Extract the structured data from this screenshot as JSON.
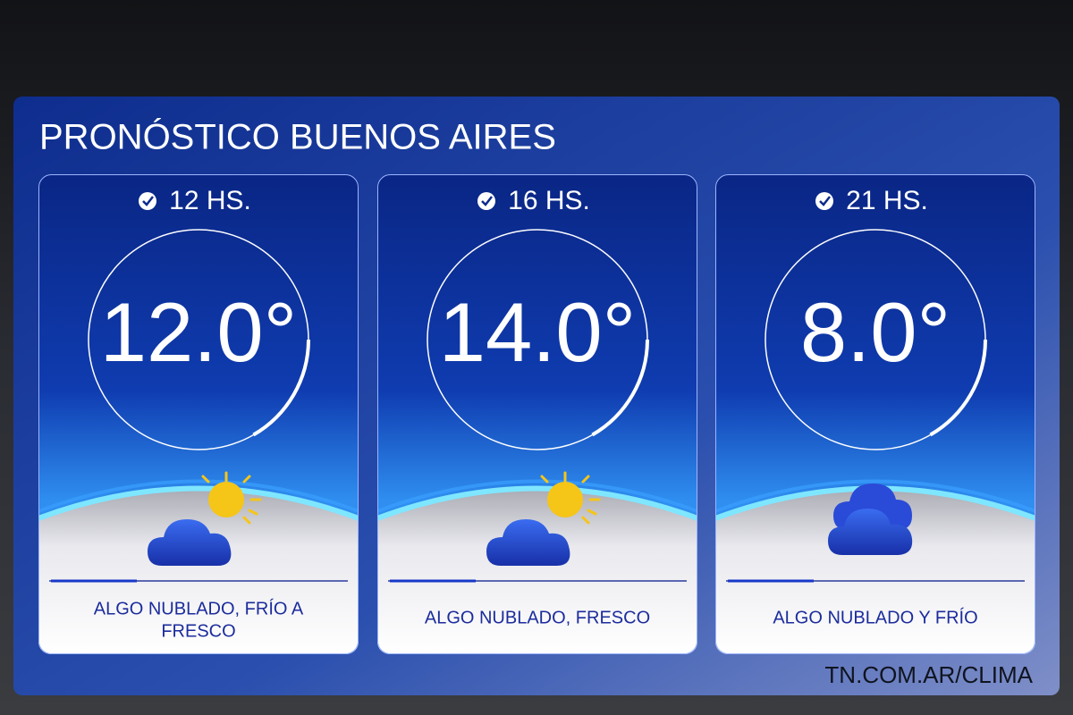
{
  "header": {
    "title": "PRONÓSTICO BUENOS AIRES"
  },
  "cards": [
    {
      "time": "12 HS.",
      "temperature": "12.0°",
      "description": [
        "ALGO NUBLADO, FRÍO A",
        "FRESCO"
      ]
    },
    {
      "time": "16 HS.",
      "temperature": "14.0°",
      "description": [
        "ALGO NUBLADO, FRESCO"
      ]
    },
    {
      "time": "21 HS.",
      "temperature": "8.0°",
      "description": [
        "ALGO NUBLADO Y FRÍO"
      ]
    }
  ],
  "footer": {
    "url": "TN.COM.AR/CLIMA"
  }
}
